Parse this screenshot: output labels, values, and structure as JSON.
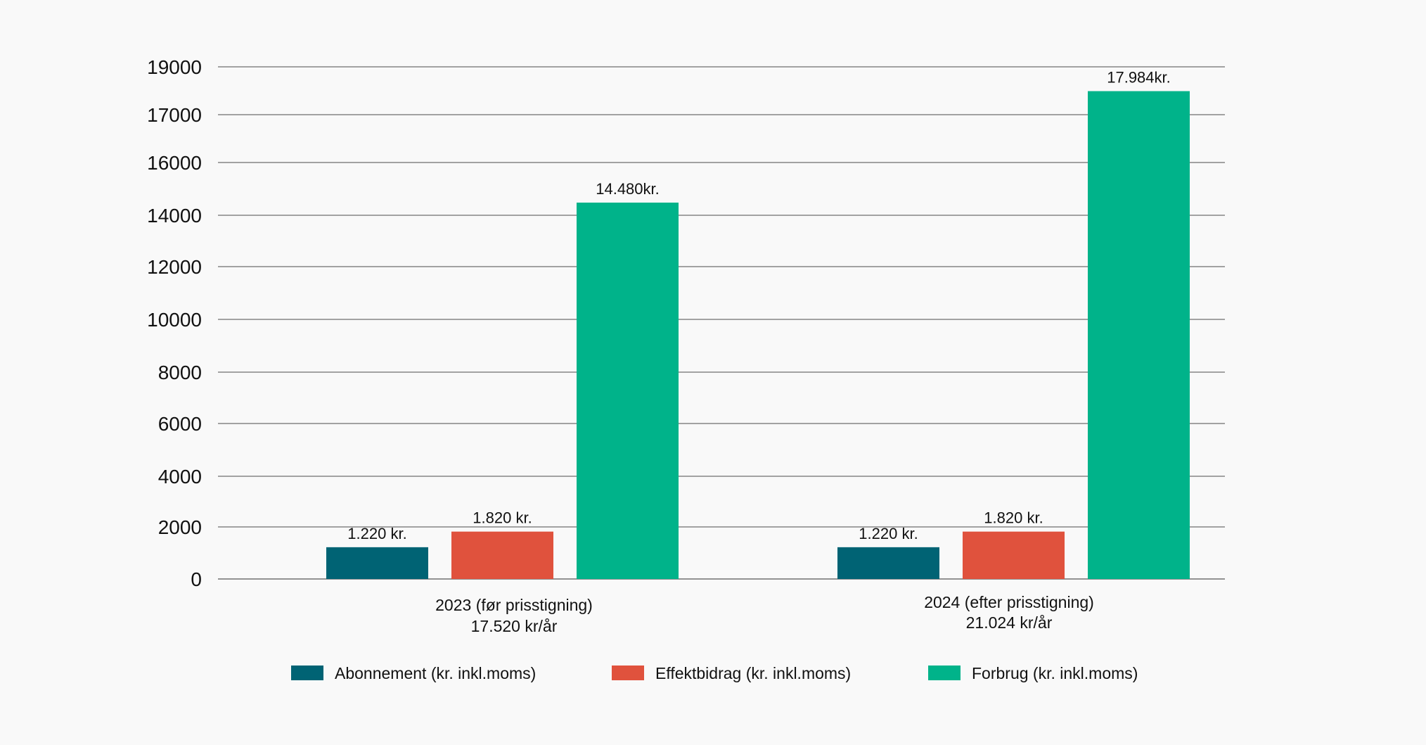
{
  "chart_data": {
    "type": "bar",
    "title": "",
    "xlabel": "",
    "ylabel": "",
    "y_tick_labels": [
      "19000",
      "17000",
      "16000",
      "14000",
      "12000",
      "10000",
      "8000",
      "6000",
      "4000",
      "2000",
      "0"
    ],
    "categories": [
      {
        "line1": "2023 (før prisstigning)",
        "line2": "17.520 kr/år"
      },
      {
        "line1": "2024 (efter prisstigning)",
        "line2": "21.024 kr/år"
      }
    ],
    "series": [
      {
        "name": "Abonnement (kr. inkl.moms)",
        "color": "#006374",
        "values": [
          1220,
          1220
        ],
        "labels": [
          "1.220 kr.",
          "1.220 kr."
        ]
      },
      {
        "name": "Effektbidrag (kr. inkl.moms)",
        "color": "#e0523d",
        "values": [
          1820,
          1820
        ],
        "labels": [
          "1.820 kr.",
          "1.820 kr."
        ]
      },
      {
        "name": "Forbrug (kr. inkl.moms)",
        "color": "#00b38a",
        "values": [
          14480,
          17984
        ],
        "labels": [
          "14.480kr.",
          "17.984kr."
        ]
      }
    ],
    "legend": "bottom",
    "grid": true
  }
}
